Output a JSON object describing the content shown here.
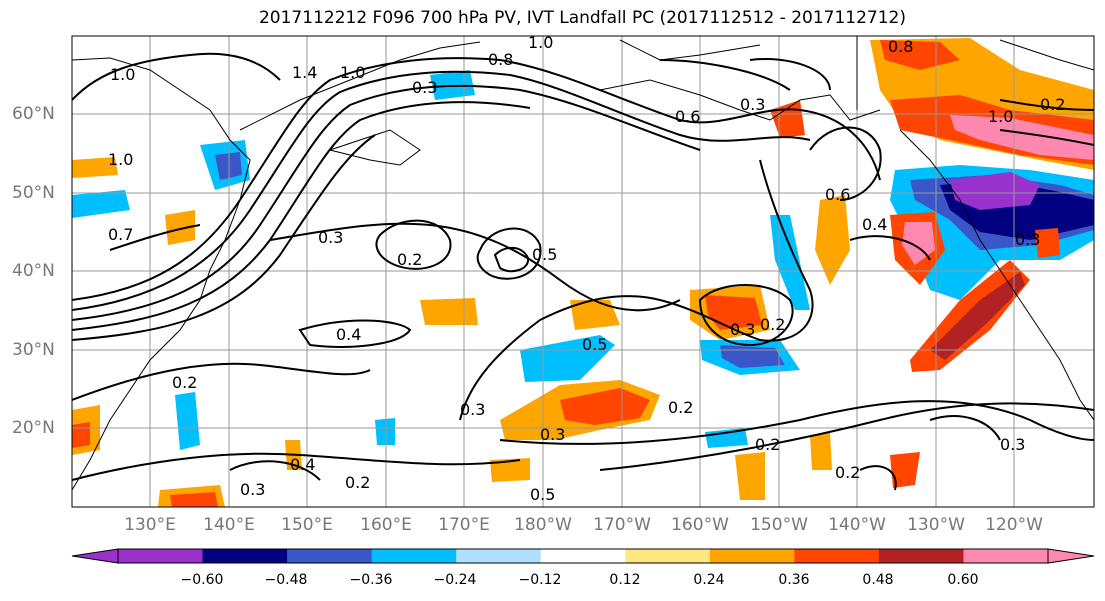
{
  "title": "2017112212 F096 700 hPa PV, IVT Landfall PC (2017112512 - 2017112712)",
  "lat_labels": [
    "60°N",
    "50°N",
    "40°N",
    "30°N",
    "20°N"
  ],
  "lon_labels": [
    "130°E",
    "140°E",
    "150°E",
    "160°E",
    "170°E",
    "180°W",
    "170°W",
    "160°W",
    "150°W",
    "140°W",
    "130°W",
    "120°W"
  ],
  "colorbar": {
    "tick_labels": [
      "−0.60",
      "−0.48",
      "−0.36",
      "−0.24",
      "−0.12",
      "0.12",
      "0.24",
      "0.36",
      "0.48",
      "0.60"
    ],
    "colors": [
      "#9932cc",
      "#000080",
      "#3a56c8",
      "#00bfff",
      "#b0e0ff",
      "#ffffff",
      "#ffe680",
      "#ffa500",
      "#ff4500",
      "#b22222",
      "#ff88b0"
    ]
  },
  "contour_labels": [
    "1.0",
    "1.4",
    "1.0",
    "0.8",
    "1.0",
    "1.0",
    "0.3",
    "0.3",
    "0.2",
    "0.5",
    "0.4",
    "0.2",
    "0.3",
    "0.5",
    "0.3",
    "0.2",
    "0.3",
    "0.2",
    "0.4",
    "0.2",
    "0.3",
    "0.2",
    "0.2",
    "0.3",
    "0.6",
    "0.4",
    "0.8",
    "1.0",
    "0.6",
    "0.7",
    "0.3",
    "0.5",
    "0.3",
    "0.2"
  ]
}
